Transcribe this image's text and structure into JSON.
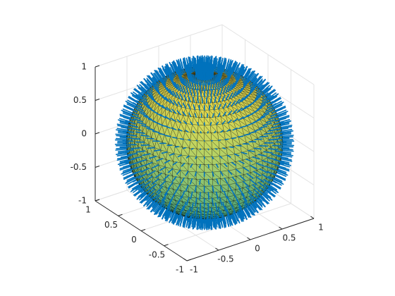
{
  "chart_data": {
    "type": "sphere-quiver",
    "xlim": [
      -1,
      1
    ],
    "ylim": [
      -1,
      1
    ],
    "zlim": [
      -1,
      1
    ],
    "xticks": [
      -1,
      -0.5,
      0,
      0.5,
      1
    ],
    "yticks": [
      -1,
      -0.5,
      0,
      0.5,
      1
    ],
    "zticks": [
      -1,
      -0.5,
      0,
      0.5,
      1
    ],
    "grid": true,
    "surface": {
      "radius": 1,
      "edge_color": "#000000",
      "colormap": [
        "#3bb89a",
        "#f4e04a"
      ]
    },
    "quiver": {
      "color": "#0072bd"
    }
  }
}
